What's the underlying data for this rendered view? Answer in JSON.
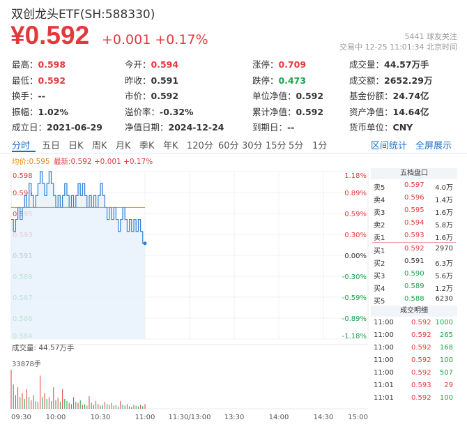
{
  "header": {
    "title": "双创龙头ETF(SH:588330)",
    "price": "¥0.592",
    "change": "+0.001  +0.17%",
    "followers_count": "5441",
    "followers_label": "球友关注",
    "trade_status": "交易中 12-25 11:01:34 北京时间"
  },
  "stats": [
    [
      {
        "label": "最高：",
        "value": "0.598",
        "color": "red"
      },
      {
        "label": "今开：",
        "value": "0.594",
        "color": "red"
      },
      {
        "label": "涨停：",
        "value": "0.709",
        "color": "red"
      },
      {
        "label": "成交量：",
        "value": "44.57万手",
        "color": ""
      }
    ],
    [
      {
        "label": "最低：",
        "value": "0.592",
        "color": "red"
      },
      {
        "label": "昨收：",
        "value": "0.591",
        "color": ""
      },
      {
        "label": "跌停：",
        "value": "0.473",
        "color": "green"
      },
      {
        "label": "成交额：",
        "value": "2652.29万",
        "color": ""
      }
    ],
    [
      {
        "label": "换手：",
        "value": "--",
        "color": ""
      },
      {
        "label": "市价：",
        "value": "0.592",
        "color": ""
      },
      {
        "label": "单位净值：",
        "value": "0.592",
        "color": ""
      },
      {
        "label": "基金份额：",
        "value": "24.74亿",
        "color": ""
      }
    ],
    [
      {
        "label": "振幅：",
        "value": "1.02%",
        "color": ""
      },
      {
        "label": "溢价率：",
        "value": "-0.32%",
        "color": ""
      },
      {
        "label": "累计净值：",
        "value": "0.592",
        "color": ""
      },
      {
        "label": "资产净值：",
        "value": "14.64亿",
        "color": ""
      }
    ],
    [
      {
        "label": "成立日：",
        "value": "2021-06-29",
        "color": ""
      },
      {
        "label": "净值日期：",
        "value": "2024-12-24",
        "color": ""
      },
      {
        "label": "到期日：",
        "value": "--",
        "color": ""
      },
      {
        "label": "货币单位：",
        "value": "CNY",
        "color": ""
      }
    ]
  ],
  "tabs": [
    "分时",
    "五日",
    "日K",
    "周K",
    "月K",
    "季K",
    "年K",
    "120分",
    "60分",
    "30分",
    "15分",
    "5分",
    "1分"
  ],
  "tab_links": [
    "区间统计",
    "全屏展示"
  ],
  "legend": {
    "avg": "均价:0.595",
    "latest": "最新:0.592 +0.001 +0.17%"
  },
  "chart_data": {
    "type": "line",
    "y_ticks": [
      "0.598",
      "0.596",
      "0.595",
      "0.593",
      "0.591",
      "0.589",
      "0.587",
      "0.586",
      "0.584"
    ],
    "pct_ticks": [
      "1.18%",
      "0.89%",
      "0.59%",
      "0.30%",
      "0.00%",
      "-0.30%",
      "-0.59%",
      "-0.89%",
      "-1.18%"
    ],
    "x_ticks": [
      "09:30",
      "10:00",
      "10:30",
      "11:00",
      "11:30/13:00",
      "13:30",
      "14:00",
      "14:30",
      "15:00"
    ],
    "ylim": [
      0.584,
      0.598
    ],
    "prev_close": 0.591,
    "avg_price": 0.595,
    "price_series": [
      0.594,
      0.593,
      0.594,
      0.595,
      0.594,
      0.595,
      0.596,
      0.595,
      0.597,
      0.596,
      0.595,
      0.596,
      0.597,
      0.598,
      0.597,
      0.596,
      0.597,
      0.598,
      0.597,
      0.596,
      0.595,
      0.596,
      0.595,
      0.596,
      0.597,
      0.596,
      0.595,
      0.596,
      0.595,
      0.596,
      0.597,
      0.596,
      0.597,
      0.596,
      0.595,
      0.596,
      0.595,
      0.596,
      0.595,
      0.596,
      0.597,
      0.596,
      0.595,
      0.594,
      0.595,
      0.594,
      0.595,
      0.594,
      0.593,
      0.594,
      0.595,
      0.594,
      0.593,
      0.594,
      0.593,
      0.594,
      0.593,
      0.594,
      0.593,
      0.592,
      0.592
    ],
    "volume_label": "成交量: 44.57万手",
    "volume_max_label": "33878手",
    "volume": [
      1.0,
      0.62,
      0.35,
      0.55,
      0.3,
      0.4,
      0.25,
      0.5,
      0.3,
      0.22,
      0.35,
      0.2,
      0.18,
      0.85,
      0.3,
      0.4,
      0.25,
      0.3,
      0.2,
      0.55,
      0.22,
      0.28,
      0.18,
      0.5,
      0.25,
      0.2,
      0.15,
      0.12,
      0.3,
      0.18,
      0.15,
      0.22,
      0.1,
      0.12,
      0.08,
      0.32,
      0.15,
      0.1,
      0.2,
      0.12,
      0.08,
      0.1,
      0.18,
      0.12,
      0.1,
      0.15,
      0.08,
      0.1,
      0.06,
      0.2,
      0.1,
      0.08,
      0.12,
      0.06,
      0.05,
      0.1,
      0.08,
      0.06,
      0.1,
      0.07,
      0.12
    ],
    "volume_colors": [
      "r",
      "g",
      "r",
      "r",
      "g",
      "r",
      "g",
      "r",
      "g",
      "r",
      "r",
      "g",
      "r",
      "r",
      "g",
      "r",
      "g",
      "r",
      "g",
      "r",
      "g",
      "r",
      "g",
      "r",
      "g",
      "g",
      "r",
      "g",
      "r",
      "g",
      "r",
      "g",
      "r",
      "g",
      "g",
      "r",
      "g",
      "r",
      "g",
      "r",
      "g",
      "g",
      "r",
      "g",
      "r",
      "g",
      "r",
      "g",
      "g",
      "r",
      "g",
      "g",
      "r",
      "g",
      "g",
      "r",
      "g",
      "g",
      "r",
      "g",
      "r"
    ]
  },
  "order_book": {
    "title": "五档盘口",
    "rows": [
      {
        "label": "卖5",
        "price": "0.597",
        "qty": "4.0万",
        "color": "red"
      },
      {
        "label": "卖4",
        "price": "0.596",
        "qty": "1.4万",
        "color": "red"
      },
      {
        "label": "卖3",
        "price": "0.595",
        "qty": "1.6万",
        "color": "red"
      },
      {
        "label": "卖2",
        "price": "0.594",
        "qty": "5.8万",
        "color": "red"
      },
      {
        "label": "卖1",
        "price": "0.593",
        "qty": "1.6万",
        "color": "red"
      },
      {
        "label": "买1",
        "price": "0.592",
        "qty": "2970",
        "color": "red"
      },
      {
        "label": "买2",
        "price": "0.591",
        "qty": "6.3万",
        "color": ""
      },
      {
        "label": "买3",
        "price": "0.590",
        "qty": "5.6万",
        "color": "green"
      },
      {
        "label": "买4",
        "price": "0.589",
        "qty": "1.2万",
        "color": "green"
      },
      {
        "label": "买5",
        "price": "0.588",
        "qty": "6230",
        "color": "green"
      }
    ]
  },
  "trades": {
    "title": "成交明细",
    "rows": [
      {
        "time": "11:00",
        "price": "0.592",
        "qty": "1000",
        "qcolor": "green"
      },
      {
        "time": "11:00",
        "price": "0.592",
        "qty": "265",
        "qcolor": "green"
      },
      {
        "time": "11:00",
        "price": "0.592",
        "qty": "168",
        "qcolor": "green"
      },
      {
        "time": "11:00",
        "price": "0.592",
        "qty": "100",
        "qcolor": "green"
      },
      {
        "time": "11:00",
        "price": "0.592",
        "qty": "507",
        "qcolor": "green"
      },
      {
        "time": "11:01",
        "price": "0.593",
        "qty": "29",
        "qcolor": "red"
      },
      {
        "time": "11:01",
        "price": "0.592",
        "qty": "100",
        "qcolor": "green"
      }
    ]
  }
}
